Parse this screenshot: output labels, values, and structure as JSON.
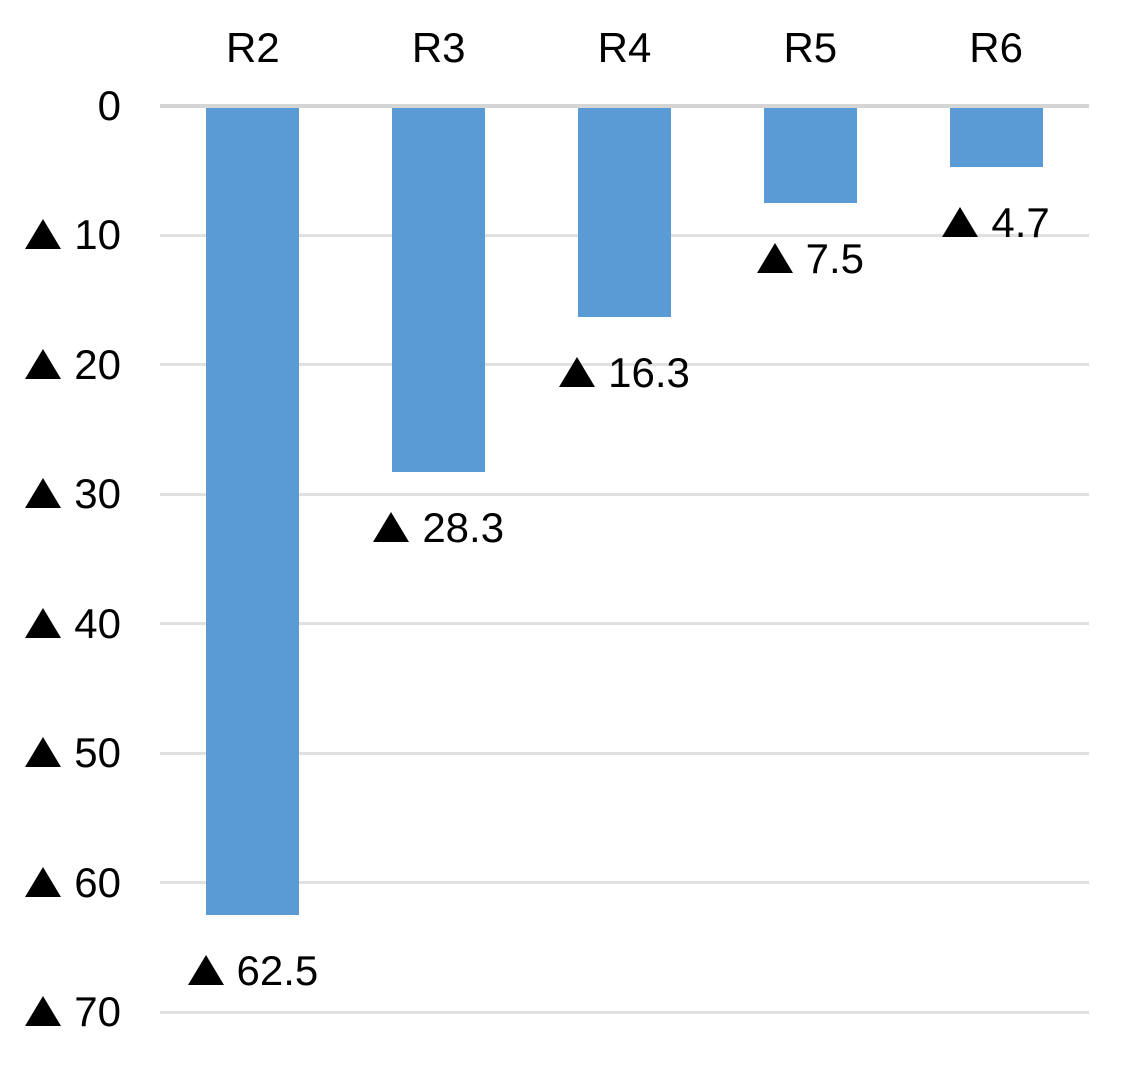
{
  "chart_data": {
    "type": "bar",
    "title": "",
    "categories": [
      "R2",
      "R3",
      "R4",
      "R5",
      "R6"
    ],
    "values": [
      -62.5,
      -28.3,
      -16.3,
      -7.5,
      -4.7
    ],
    "data_labels": [
      "62.5",
      "28.3",
      "16.3",
      "7.5",
      "4.7"
    ],
    "negative_marker": "▲",
    "y_ticks": [
      {
        "value": 0,
        "label": "0",
        "marker": false
      },
      {
        "value": -10,
        "label": "10",
        "marker": true
      },
      {
        "value": -20,
        "label": "20",
        "marker": true
      },
      {
        "value": -30,
        "label": "30",
        "marker": true
      },
      {
        "value": -40,
        "label": "40",
        "marker": true
      },
      {
        "value": -50,
        "label": "50",
        "marker": true
      },
      {
        "value": -60,
        "label": "60",
        "marker": true
      },
      {
        "value": -70,
        "label": "70",
        "marker": true
      }
    ],
    "axis_range": [
      0,
      -70
    ],
    "x_axis_position": "top",
    "data_label_position": "outside-end-below",
    "grid": true,
    "legend": "none",
    "bar_color": "#5B9BD5",
    "gridline_color": "#E0E0E0",
    "zero_line_color": "#D5D5D5",
    "text_color": "#000000",
    "background": "#FFFFFF"
  }
}
